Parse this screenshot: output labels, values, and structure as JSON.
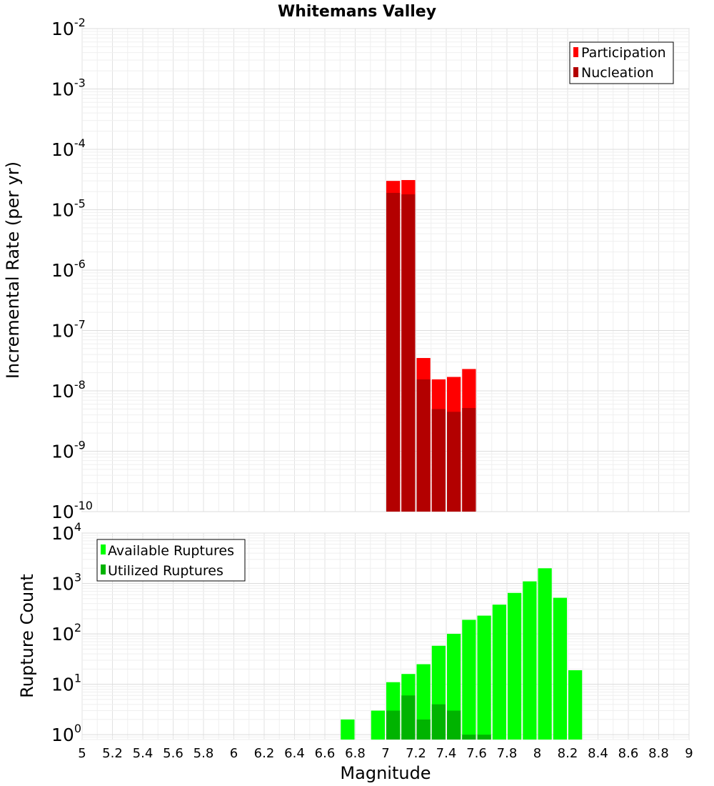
{
  "title": "Whitemans Valley",
  "chart_data": [
    {
      "type": "bar",
      "ylabel": "Incremental Rate (per yr)",
      "yscale": "log",
      "ylim": [
        1e-10,
        0.01
      ],
      "xlim": [
        5,
        9
      ],
      "ytick_exponents": [
        "-10",
        "-9",
        "-8",
        "-7",
        "-6",
        "-5",
        "-4",
        "-3",
        "-2"
      ],
      "ytick_base": "10",
      "legend_position": "top-right",
      "grid": true,
      "series": [
        {
          "name": "Participation",
          "color": "#ff0000",
          "x": [
            7.05,
            7.15,
            7.25,
            7.35,
            7.45,
            7.55
          ],
          "values": [
            3e-05,
            3.1e-05,
            3.5e-08,
            1.55e-08,
            1.7e-08,
            2.3e-08
          ]
        },
        {
          "name": "Nucleation",
          "color": "#b30000",
          "x": [
            7.05,
            7.15,
            7.25,
            7.35,
            7.45,
            7.55
          ],
          "values": [
            1.9e-05,
            1.8e-05,
            1.55e-08,
            5e-09,
            4.5e-09,
            5.2e-09
          ]
        }
      ]
    },
    {
      "type": "bar",
      "xlabel": "Magnitude",
      "ylabel": "Rupture Count",
      "yscale": "log",
      "ylim": [
        0.8,
        10000
      ],
      "xlim": [
        5,
        9
      ],
      "ytick_exponents": [
        "0",
        "1",
        "2",
        "3",
        "4"
      ],
      "ytick_base": "10",
      "xticks": [
        "5",
        "5.2",
        "5.4",
        "5.6",
        "5.8",
        "6",
        "6.2",
        "6.4",
        "6.6",
        "6.8",
        "7",
        "7.2",
        "7.4",
        "7.6",
        "7.8",
        "8",
        "8.2",
        "8.4",
        "8.6",
        "8.8",
        "9"
      ],
      "legend_position": "top-left",
      "grid": true,
      "series": [
        {
          "name": "Available Ruptures",
          "color": "#00ff00",
          "x": [
            6.75,
            6.95,
            7.05,
            7.15,
            7.25,
            7.35,
            7.45,
            7.55,
            7.65,
            7.75,
            7.85,
            7.95,
            8.05,
            8.15,
            8.25
          ],
          "values": [
            2,
            3,
            11,
            16,
            25,
            58,
            100,
            190,
            230,
            380,
            650,
            1100,
            2000,
            520,
            19
          ]
        },
        {
          "name": "Utilized Ruptures",
          "color": "#00b300",
          "x": [
            7.05,
            7.15,
            7.25,
            7.35,
            7.45,
            7.55,
            7.65
          ],
          "values": [
            3,
            6,
            2,
            4,
            3,
            1,
            1
          ]
        }
      ]
    }
  ]
}
